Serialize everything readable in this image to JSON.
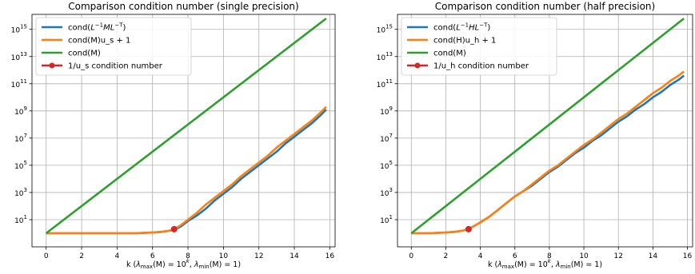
{
  "chart_data": [
    {
      "type": "line",
      "title": "Comparison condition number (single precision)",
      "xlabel": "k  (λmax(M) = 10^k, λmin(M) = 1)",
      "xlabel_parts": {
        "k": "k  (",
        "lmax": "λ",
        "lmax_sub": "max",
        "eq1": "(M) = 10",
        "exp": "k",
        "sep": ", ",
        "lmin": "λ",
        "lmin_sub": "min",
        "eq2": "(M) = 1)"
      },
      "xlim": [
        -0.8,
        16.3
      ],
      "xticks": [
        0,
        2,
        4,
        6,
        8,
        10,
        12,
        14,
        16
      ],
      "ylog": true,
      "ylim_log10": [
        -1,
        16.1
      ],
      "yticks_log10": [
        1,
        3,
        5,
        7,
        9,
        11,
        13,
        15
      ],
      "ytick_base": "10",
      "grid": true,
      "legend_position": "top-left",
      "series": [
        {
          "name": "cond(L⁻¹ML⁻ᵀ)",
          "legend_parts": {
            "pre": "cond(",
            "L1": "L",
            "sup1": "−1",
            "M": "M",
            "L2": "L",
            "sup2": "−T",
            "post": ")"
          },
          "color": "#1f77b4",
          "x": [
            0,
            1,
            2,
            3,
            4,
            5,
            6,
            6.5,
            7,
            7.3,
            7.6,
            8,
            8.5,
            9,
            9.5,
            10,
            10.5,
            11,
            11.5,
            12,
            12.5,
            13,
            13.5,
            14,
            14.5,
            15,
            15.5,
            15.8
          ],
          "y_log10": [
            0,
            0,
            0,
            0,
            0,
            0,
            0.05,
            0.1,
            0.2,
            0.3,
            0.5,
            0.9,
            1.3,
            1.8,
            2.4,
            2.9,
            3.4,
            4.0,
            4.5,
            5.0,
            5.5,
            6.0,
            6.6,
            7.1,
            7.6,
            8.1,
            8.7,
            9.1
          ]
        },
        {
          "name": "cond(M)u_s + 1",
          "color": "#ff7f0e",
          "x": [
            0,
            1,
            2,
            3,
            4,
            5,
            6,
            6.5,
            7,
            7.3,
            7.6,
            8,
            8.5,
            9,
            9.5,
            10,
            10.5,
            11,
            11.5,
            12,
            12.5,
            13,
            13.5,
            14,
            14.5,
            15,
            15.5,
            15.8
          ],
          "y_log10": [
            0,
            0,
            0,
            0,
            0,
            0,
            0.05,
            0.1,
            0.2,
            0.35,
            0.6,
            1.0,
            1.5,
            2.1,
            2.6,
            3.1,
            3.6,
            4.2,
            4.7,
            5.2,
            5.7,
            6.3,
            6.8,
            7.3,
            7.8,
            8.3,
            8.9,
            9.3
          ]
        },
        {
          "name": "cond(M)",
          "color": "#2ca02c",
          "x": [
            0,
            15.8
          ],
          "y_log10": [
            0,
            15.8
          ]
        },
        {
          "name": "1/u_s condition number",
          "color": "#d62728",
          "marker": true,
          "x": [
            7.22
          ],
          "y_log10": [
            0.3
          ]
        }
      ]
    },
    {
      "type": "line",
      "title": "Comparison condition number (half precision)",
      "xlabel": "k  (λmax(M) = 10^k, λmin(M) = 1)",
      "xlabel_parts": {
        "k": "k  (",
        "lmax": "λ",
        "lmax_sub": "max",
        "eq1": "(M) = 10",
        "exp": "k",
        "sep": ", ",
        "lmin": "λ",
        "lmin_sub": "min",
        "eq2": "(M) = 1)"
      },
      "xlim": [
        -0.8,
        16.3
      ],
      "xticks": [
        0,
        2,
        4,
        6,
        8,
        10,
        12,
        14,
        16
      ],
      "ylog": true,
      "ylim_log10": [
        -1,
        16.1
      ],
      "yticks_log10": [
        1,
        3,
        5,
        7,
        9,
        11,
        13,
        15
      ],
      "ytick_base": "10",
      "grid": true,
      "legend_position": "top-left",
      "series": [
        {
          "name": "cond(L⁻¹HL⁻ᵀ)",
          "legend_parts": {
            "pre": "cond(",
            "L1": "L",
            "sup1": "−1",
            "M": "H",
            "L2": "L",
            "sup2": "−T",
            "post": ")"
          },
          "color": "#1f77b4",
          "x": [
            0,
            1,
            2,
            2.5,
            3,
            3.3,
            3.6,
            4,
            4.5,
            5,
            5.5,
            6,
            6.5,
            7,
            7.5,
            8,
            8.5,
            9,
            9.5,
            10,
            10.5,
            11,
            11.5,
            12,
            12.5,
            13,
            13.5,
            14,
            14.5,
            15,
            15.5,
            15.8
          ],
          "y_log10": [
            0,
            0,
            0.05,
            0.1,
            0.2,
            0.3,
            0.5,
            0.8,
            1.2,
            1.7,
            2.2,
            2.7,
            3.1,
            3.5,
            4.0,
            4.5,
            4.9,
            5.4,
            5.9,
            6.3,
            6.8,
            7.2,
            7.7,
            8.2,
            8.6,
            9.1,
            9.5,
            10.0,
            10.4,
            10.9,
            11.3,
            11.6
          ]
        },
        {
          "name": "cond(H)u_h + 1",
          "color": "#ff7f0e",
          "x": [
            0,
            1,
            2,
            2.5,
            3,
            3.3,
            3.6,
            4,
            4.5,
            5,
            5.5,
            6,
            6.5,
            7,
            7.5,
            8,
            8.5,
            9,
            9.5,
            10,
            10.5,
            11,
            11.5,
            12,
            12.5,
            13,
            13.5,
            14,
            14.5,
            15,
            15.5,
            15.8
          ],
          "y_log10": [
            0,
            0,
            0.05,
            0.1,
            0.2,
            0.3,
            0.5,
            0.8,
            1.2,
            1.7,
            2.2,
            2.7,
            3.1,
            3.6,
            4.1,
            4.6,
            5.0,
            5.5,
            6.0,
            6.5,
            6.9,
            7.4,
            7.9,
            8.4,
            8.8,
            9.3,
            9.8,
            10.3,
            10.7,
            11.2,
            11.6,
            11.9
          ]
        },
        {
          "name": "cond(M)",
          "color": "#2ca02c",
          "x": [
            0,
            15.8
          ],
          "y_log10": [
            0,
            15.8
          ]
        },
        {
          "name": "1/u_h condition number",
          "color": "#d62728",
          "marker": true,
          "x": [
            3.32
          ],
          "y_log10": [
            0.3
          ]
        }
      ]
    }
  ]
}
